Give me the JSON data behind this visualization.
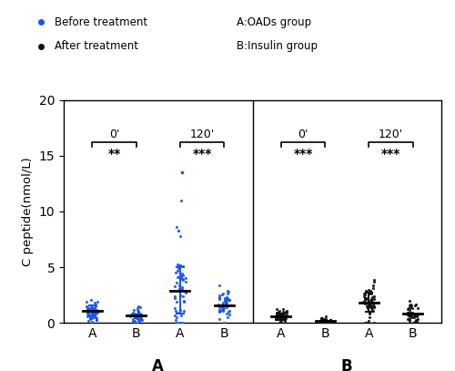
{
  "title": "",
  "ylabel": "C peptide(nmol/L)",
  "ylim": [
    0,
    20
  ],
  "yticks": [
    0,
    5,
    10,
    15,
    20
  ],
  "panel_A_label": "A",
  "panel_B_label": "B",
  "legend_before": "Before treatment",
  "legend_after": "After treatment",
  "legend_OADs": "A:OADs group",
  "legend_insulin": "B:Insulin group",
  "color_before": "#1a56e8",
  "color_after": "#111111",
  "sig_A": [
    "**",
    "***"
  ],
  "sig_B": [
    "***",
    "***"
  ],
  "panel_A_means": [
    1.1,
    0.65,
    2.9,
    1.55
  ],
  "panel_A_sds": [
    0.5,
    0.35,
    2.1,
    0.85
  ],
  "panel_B_means": [
    0.55,
    0.18,
    1.85,
    0.85
  ],
  "panel_B_sds": [
    0.3,
    0.12,
    0.9,
    0.45
  ],
  "n_points": 50,
  "seed": 42
}
